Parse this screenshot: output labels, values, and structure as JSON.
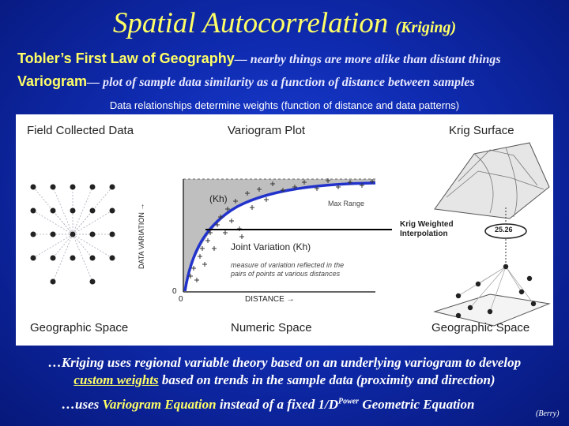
{
  "title": {
    "main": "Spatial Autocorrelation",
    "sub": "(Kriging)"
  },
  "law": {
    "lead": "Tobler’s First Law of Geography",
    "rest": "— nearby things are more alike than distant things"
  },
  "variogram": {
    "lead": "Variogram",
    "rest": "— plot of sample data similarity as a function of distance between samples"
  },
  "note": "Data relationships determine weights (function of distance and data patterns)",
  "figure": {
    "field_title": "Field Collected Data",
    "plot_title": "Variogram Plot",
    "surface_title": "Krig Surface",
    "geo_space_left": "Geographic Space",
    "numeric_space": "Numeric Space",
    "geo_space_right": "Geographic Space",
    "y_axis_label": "DATA VARIATION →",
    "x_axis_label": "DISTANCE →",
    "zero_y": "0",
    "zero_x": "0",
    "kh_label": "(Kh)",
    "max_range": "Max Range",
    "joint_variation": "Joint Variation (Kh)",
    "measure_note_1": "measure of variation reflected in the",
    "measure_note_2": "pairs of points at various distances",
    "krig_weighted_1": "Krig Weighted",
    "krig_weighted_2": "Interpolation",
    "value_label": "25.26"
  },
  "footer": {
    "line1_a": "…Kriging uses regional variable theory based on an underlying variogram to develop",
    "line1_hl": "custom weights",
    "line1_b": "based on trends in the sample data (proximity and direction)",
    "line2_a": "…uses",
    "line2_hl": "Variogram Equation",
    "line2_b": "instead of a fixed 1/D",
    "line2_sup": "Power",
    "line2_c": "Geometric Equation",
    "credit": "(Berry)"
  }
}
